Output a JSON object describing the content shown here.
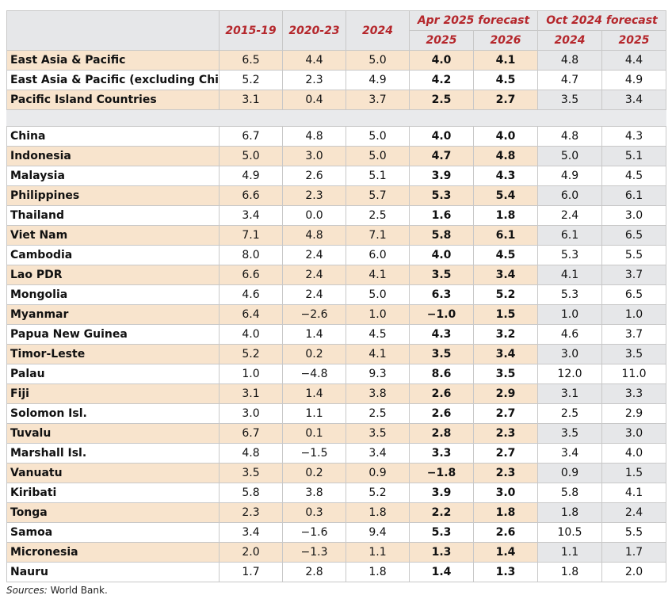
{
  "header": {
    "col_2015_19": "2015-19",
    "col_2020_23": "2020-23",
    "col_2024": "2024",
    "apr_group": "Apr 2025 forecast",
    "oct_group": "Oct 2024 forecast",
    "apr_2025": "2025",
    "apr_2026": "2026",
    "oct_2024": "2024",
    "oct_2025": "2025"
  },
  "group_rows": [
    {
      "name": "East Asia & Pacific",
      "v": [
        "6.5",
        "4.4",
        "5.0",
        "4.0",
        "4.1",
        "4.8",
        "4.4"
      ]
    },
    {
      "name": "East Asia & Pacific (excluding China)",
      "v": [
        "5.2",
        "2.3",
        "4.9",
        "4.2",
        "4.5",
        "4.7",
        "4.9"
      ]
    },
    {
      "name": "Pacific Island Countries",
      "v": [
        "3.1",
        "0.4",
        "3.7",
        "2.5",
        "2.7",
        "3.5",
        "3.4"
      ]
    }
  ],
  "country_rows": [
    {
      "name": "China",
      "v": [
        "6.7",
        "4.8",
        "5.0",
        "4.0",
        "4.0",
        "4.8",
        "4.3"
      ]
    },
    {
      "name": "Indonesia",
      "v": [
        "5.0",
        "3.0",
        "5.0",
        "4.7",
        "4.8",
        "5.0",
        "5.1"
      ]
    },
    {
      "name": "Malaysia",
      "v": [
        "4.9",
        "2.6",
        "5.1",
        "3.9",
        "4.3",
        "4.9",
        "4.5"
      ]
    },
    {
      "name": "Philippines",
      "v": [
        "6.6",
        "2.3",
        "5.7",
        "5.3",
        "5.4",
        "6.0",
        "6.1"
      ]
    },
    {
      "name": "Thailand",
      "v": [
        "3.4",
        "0.0",
        "2.5",
        "1.6",
        "1.8",
        "2.4",
        "3.0"
      ]
    },
    {
      "name": "Viet Nam",
      "v": [
        "7.1",
        "4.8",
        "7.1",
        "5.8",
        "6.1",
        "6.1",
        "6.5"
      ]
    },
    {
      "name": "Cambodia",
      "v": [
        "8.0",
        "2.4",
        "6.0",
        "4.0",
        "4.5",
        "5.3",
        "5.5"
      ]
    },
    {
      "name": "Lao PDR",
      "v": [
        "6.6",
        "2.4",
        "4.1",
        "3.5",
        "3.4",
        "4.1",
        "3.7"
      ]
    },
    {
      "name": "Mongolia",
      "v": [
        "4.6",
        "2.4",
        "5.0",
        "6.3",
        "5.2",
        "5.3",
        "6.5"
      ]
    },
    {
      "name": "Myanmar",
      "v": [
        "6.4",
        "−2.6",
        "1.0",
        "−1.0",
        "1.5",
        "1.0",
        "1.0"
      ]
    },
    {
      "name": "Papua New Guinea",
      "v": [
        "4.0",
        "1.4",
        "4.5",
        "4.3",
        "3.2",
        "4.6",
        "3.7"
      ]
    },
    {
      "name": "Timor-Leste",
      "v": [
        "5.2",
        "0.2",
        "4.1",
        "3.5",
        "3.4",
        "3.0",
        "3.5"
      ]
    },
    {
      "name": "Palau",
      "v": [
        "1.0",
        "−4.8",
        "9.3",
        "8.6",
        "3.5",
        "12.0",
        "11.0"
      ]
    },
    {
      "name": "Fiji",
      "v": [
        "3.1",
        "1.4",
        "3.8",
        "2.6",
        "2.9",
        "3.1",
        "3.3"
      ]
    },
    {
      "name": "Solomon Isl.",
      "v": [
        "3.0",
        "1.1",
        "2.5",
        "2.6",
        "2.7",
        "2.5",
        "2.9"
      ]
    },
    {
      "name": "Tuvalu",
      "v": [
        "6.7",
        "0.1",
        "3.5",
        "2.8",
        "2.3",
        "3.5",
        "3.0"
      ]
    },
    {
      "name": "Marshall Isl.",
      "v": [
        "4.8",
        "−1.5",
        "3.4",
        "3.3",
        "2.7",
        "3.4",
        "4.0"
      ]
    },
    {
      "name": "Vanuatu",
      "v": [
        "3.5",
        "0.2",
        "0.9",
        "−1.8",
        "2.3",
        "0.9",
        "1.5"
      ]
    },
    {
      "name": "Kiribati",
      "v": [
        "5.8",
        "3.8",
        "5.2",
        "3.9",
        "3.0",
        "5.8",
        "4.1"
      ]
    },
    {
      "name": "Tonga",
      "v": [
        "2.3",
        "0.3",
        "1.8",
        "2.2",
        "1.8",
        "1.8",
        "2.4"
      ]
    },
    {
      "name": "Samoa",
      "v": [
        "3.4",
        "−1.6",
        "9.4",
        "5.3",
        "2.6",
        "10.5",
        "5.5"
      ]
    },
    {
      "name": "Micronesia",
      "v": [
        "2.0",
        "−1.3",
        "1.1",
        "1.3",
        "1.4",
        "1.1",
        "1.7"
      ]
    },
    {
      "name": "Nauru",
      "v": [
        "1.7",
        "2.8",
        "1.8",
        "1.4",
        "1.3",
        "1.8",
        "2.0"
      ]
    }
  ],
  "source": {
    "label": "Sources:",
    "text": " World Bank."
  }
}
